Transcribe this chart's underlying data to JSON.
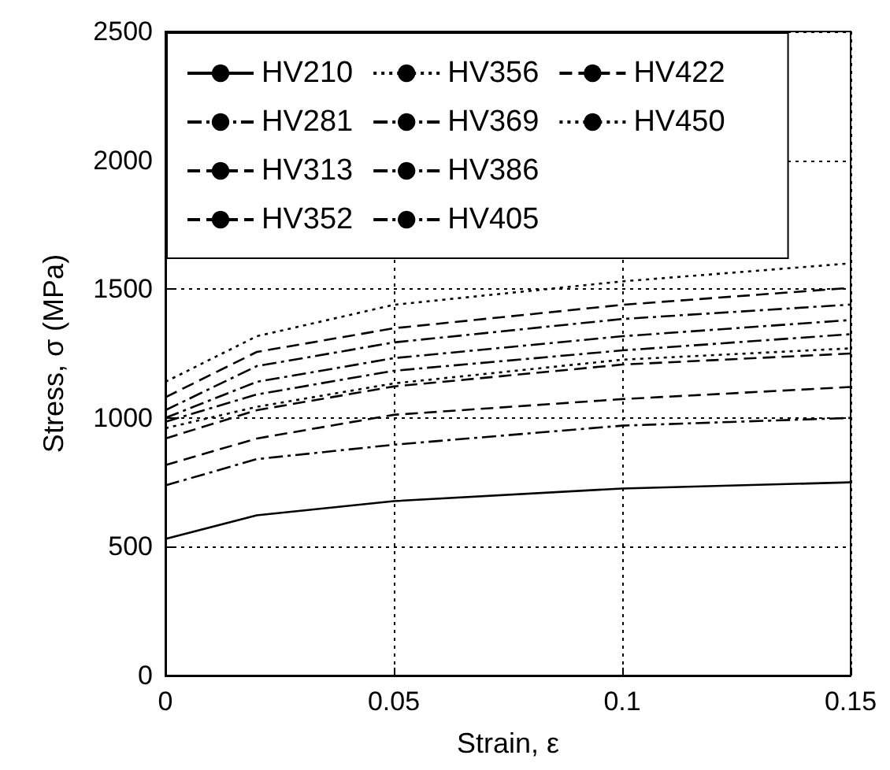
{
  "chart_data": {
    "type": "line",
    "xlabel": "Strain, ε",
    "ylabel": "Stress, σ (MPa)",
    "x": [
      0,
      0.02,
      0.05,
      0.1,
      0.15
    ],
    "series": [
      {
        "name": "HV210",
        "color": "#000000",
        "line_style": "solid",
        "values": [
          530,
          622,
          677,
          726,
          750
        ]
      },
      {
        "name": "HV281",
        "color": "#000000",
        "line_style": "dashdot",
        "values": [
          738,
          840,
          896,
          970,
          1000
        ]
      },
      {
        "name": "HV313",
        "color": "#000000",
        "line_style": "dashed",
        "values": [
          817,
          920,
          1012,
          1073,
          1120
        ]
      },
      {
        "name": "HV352",
        "color": "#000000",
        "line_style": "dashed",
        "values": [
          920,
          1030,
          1122,
          1207,
          1250
        ]
      },
      {
        "name": "HV356",
        "color": "#000000",
        "line_style": "dotted",
        "values": [
          960,
          1043,
          1134,
          1226,
          1270
        ]
      },
      {
        "name": "HV369",
        "color": "#000000",
        "line_style": "dashdot",
        "values": [
          985,
          1091,
          1183,
          1262,
          1325
        ]
      },
      {
        "name": "HV386",
        "color": "#000000",
        "line_style": "dashdot",
        "values": [
          1000,
          1140,
          1232,
          1317,
          1380
        ]
      },
      {
        "name": "HV405",
        "color": "#000000",
        "line_style": "dashdot",
        "values": [
          1030,
          1201,
          1293,
          1384,
          1440
        ]
      },
      {
        "name": "HV422",
        "color": "#000000",
        "line_style": "dashed",
        "values": [
          1080,
          1256,
          1348,
          1439,
          1505
        ]
      },
      {
        "name": "HV450",
        "color": "#000000",
        "line_style": "dotted",
        "values": [
          1140,
          1317,
          1439,
          1530,
          1600
        ]
      }
    ],
    "xlim": [
      0,
      0.15
    ],
    "xticks": [
      0,
      0.05,
      0.1,
      0.15
    ],
    "ylim": [
      0,
      2500
    ],
    "yticks": [
      0,
      500,
      1000,
      1500,
      2000,
      2500
    ],
    "grid": true,
    "legend": "top"
  }
}
